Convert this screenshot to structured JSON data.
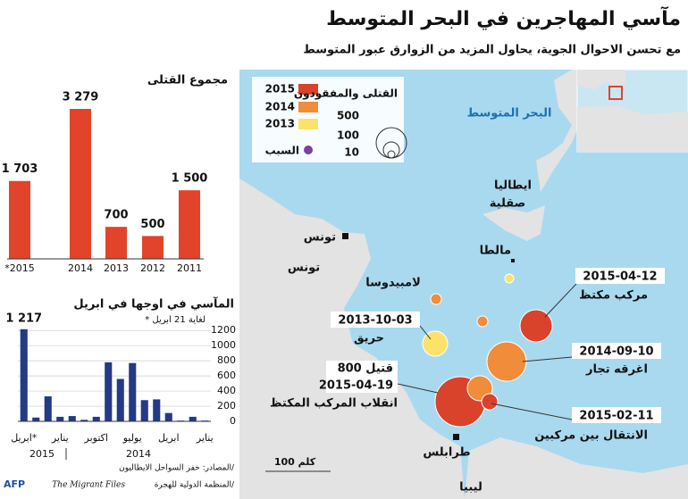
{
  "header": {
    "title": "مآسي المهاجرين في البحر المتوسط",
    "subtitle": "مع تحسن الاحوال الجوية، يحاول المزيد من الزوارق عبور المتوسط"
  },
  "chart_data": [
    {
      "type": "bar",
      "title": "مجموع القتلى",
      "categories": [
        "*2015",
        "2014",
        "2013",
        "2012",
        "2011"
      ],
      "values": [
        1703,
        3279,
        700,
        500,
        1500
      ],
      "value_labels": [
        "1 703",
        "3 279",
        "700",
        "500",
        "1 500"
      ],
      "color": "#e1442b"
    },
    {
      "type": "bar",
      "title": "المآسي في اوجها في ابريل",
      "subtitle": "* لغاية 21 ابريل",
      "categories": [
        "ابريل*",
        null,
        null,
        "يناير",
        null,
        null,
        "اكتوبر",
        null,
        null,
        "يوليو",
        null,
        null,
        "ابريل",
        null,
        null,
        "يناير"
      ],
      "values": [
        1217,
        50,
        330,
        60,
        70,
        20,
        60,
        780,
        560,
        770,
        280,
        290,
        110,
        10,
        60,
        10
      ],
      "value_labels": [
        "1 217",
        null,
        null,
        null,
        null,
        null,
        null,
        null,
        null,
        null,
        null,
        null,
        null,
        null,
        null,
        null
      ],
      "years": [
        "2015",
        "2014"
      ],
      "color": "#243a86",
      "ylim": [
        0,
        1250
      ],
      "yticks": [
        0,
        200,
        400,
        600,
        800,
        1000,
        1200
      ],
      "grid": true
    }
  ],
  "map": {
    "sea": "البحر المتوسط",
    "places": [
      "ايطاليا",
      "صقلية",
      "تونس",
      "تونس",
      "مالطا",
      "لامبيدوسا",
      "طرابلس",
      "ليبيا"
    ],
    "scale": "100 كلم",
    "legend": {
      "years": [
        "2015",
        "2014",
        "2013"
      ],
      "size_title": "القتلى والمفقودون",
      "sizes": [
        "500",
        "100",
        "10"
      ],
      "cause": "السبب"
    },
    "callouts": [
      {
        "date": "2015-04-12",
        "text": "مركب مكتظ"
      },
      {
        "date": "2013-10-03",
        "text": "حريق"
      },
      {
        "date": "2014-09-10",
        "text": "اغرقه تجار"
      },
      {
        "head": "800 قتيل",
        "date": "2015-04-19",
        "text": "انقلاب المركب المكتظ"
      },
      {
        "date": "2015-02-11",
        "text": "الانتقال بين مركبين"
      }
    ]
  },
  "source": {
    "line1": "المصادر: خفر السواحل الايطاليون/",
    "line2": "المنظمة الدولية للهجرة/",
    "migrant": "The Migrant Files",
    "agency": "AFP"
  }
}
